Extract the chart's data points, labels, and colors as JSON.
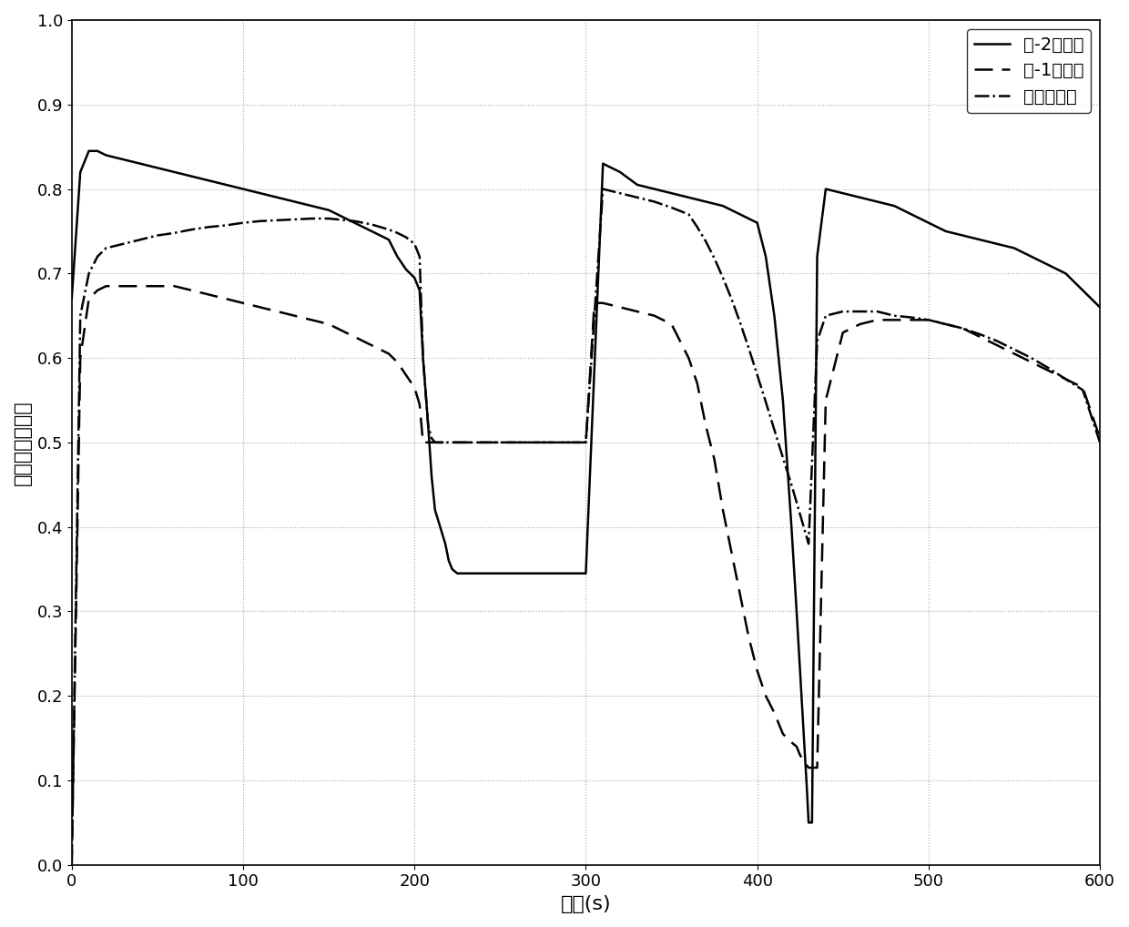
{
  "title": "",
  "xlabel": "时间(s)",
  "ylabel": "平均氨气覆盖率",
  "xlim": [
    0,
    600
  ],
  "ylim": [
    0,
    1
  ],
  "xticks": [
    0,
    100,
    200,
    300,
    400,
    500,
    600
  ],
  "yticks": [
    0,
    0.1,
    0.2,
    0.3,
    0.4,
    0.5,
    0.6,
    0.7,
    0.8,
    0.9,
    1
  ],
  "legend_labels": [
    "罐-2真实值",
    "罐-1真实值",
    "估计平均值"
  ],
  "line1_style": "solid",
  "line2_style": "dashed",
  "line3_style": "dashdot",
  "line_color": "#000000",
  "background_color": "#ffffff",
  "grid_color": "#aaaaaa",
  "grid_style": "dotted",
  "line1_x": [
    0,
    5,
    10,
    15,
    20,
    30,
    40,
    50,
    60,
    70,
    80,
    90,
    100,
    110,
    120,
    130,
    140,
    150,
    155,
    160,
    165,
    170,
    175,
    180,
    185,
    190,
    195,
    200,
    203,
    205,
    208,
    210,
    212,
    215,
    218,
    220,
    222,
    225,
    230,
    240,
    250,
    260,
    270,
    280,
    290,
    300,
    310,
    320,
    330,
    340,
    350,
    360,
    370,
    380,
    390,
    400,
    405,
    410,
    415,
    420,
    423,
    425,
    427,
    429,
    430,
    432,
    435,
    440,
    450,
    460,
    470,
    480,
    490,
    500,
    510,
    520,
    530,
    540,
    550,
    560,
    570,
    580,
    590,
    600
  ],
  "line1_y": [
    0.67,
    0.82,
    0.845,
    0.845,
    0.84,
    0.835,
    0.83,
    0.825,
    0.82,
    0.815,
    0.81,
    0.805,
    0.8,
    0.795,
    0.79,
    0.785,
    0.78,
    0.775,
    0.77,
    0.765,
    0.76,
    0.755,
    0.75,
    0.745,
    0.74,
    0.72,
    0.705,
    0.695,
    0.68,
    0.6,
    0.52,
    0.46,
    0.42,
    0.4,
    0.38,
    0.36,
    0.35,
    0.345,
    0.345,
    0.345,
    0.345,
    0.345,
    0.345,
    0.345,
    0.345,
    0.345,
    0.83,
    0.82,
    0.805,
    0.8,
    0.795,
    0.79,
    0.785,
    0.78,
    0.77,
    0.76,
    0.72,
    0.65,
    0.55,
    0.4,
    0.3,
    0.23,
    0.16,
    0.09,
    0.05,
    0.05,
    0.72,
    0.8,
    0.795,
    0.79,
    0.785,
    0.78,
    0.77,
    0.76,
    0.75,
    0.745,
    0.74,
    0.735,
    0.73,
    0.72,
    0.71,
    0.7,
    0.68,
    0.66
  ],
  "line2_x": [
    0,
    5,
    10,
    15,
    20,
    30,
    40,
    50,
    60,
    70,
    80,
    90,
    100,
    110,
    120,
    130,
    140,
    150,
    155,
    160,
    165,
    170,
    175,
    180,
    185,
    190,
    195,
    200,
    203,
    205,
    208,
    210,
    212,
    215,
    218,
    220,
    222,
    225,
    230,
    240,
    250,
    260,
    270,
    280,
    290,
    300,
    305,
    310,
    320,
    330,
    340,
    350,
    360,
    365,
    370,
    375,
    380,
    385,
    390,
    395,
    400,
    405,
    410,
    415,
    420,
    423,
    425,
    428,
    430,
    435,
    440,
    450,
    460,
    470,
    480,
    490,
    500,
    510,
    520,
    530,
    540,
    550,
    560,
    570,
    580,
    590,
    600
  ],
  "line2_y": [
    0.0,
    0.6,
    0.67,
    0.68,
    0.685,
    0.685,
    0.685,
    0.685,
    0.685,
    0.68,
    0.675,
    0.67,
    0.665,
    0.66,
    0.655,
    0.65,
    0.645,
    0.64,
    0.635,
    0.63,
    0.625,
    0.62,
    0.615,
    0.61,
    0.605,
    0.595,
    0.58,
    0.565,
    0.545,
    0.5,
    0.5,
    0.5,
    0.5,
    0.5,
    0.5,
    0.5,
    0.5,
    0.5,
    0.5,
    0.5,
    0.5,
    0.5,
    0.5,
    0.5,
    0.5,
    0.5,
    0.665,
    0.665,
    0.66,
    0.655,
    0.65,
    0.64,
    0.6,
    0.57,
    0.52,
    0.48,
    0.42,
    0.37,
    0.32,
    0.27,
    0.23,
    0.2,
    0.18,
    0.155,
    0.145,
    0.14,
    0.13,
    0.12,
    0.115,
    0.115,
    0.55,
    0.63,
    0.64,
    0.645,
    0.645,
    0.645,
    0.645,
    0.64,
    0.635,
    0.625,
    0.615,
    0.605,
    0.595,
    0.585,
    0.575,
    0.565,
    0.505
  ],
  "line3_x": [
    0,
    5,
    10,
    15,
    20,
    30,
    40,
    50,
    60,
    70,
    80,
    90,
    100,
    110,
    120,
    130,
    140,
    150,
    155,
    160,
    165,
    170,
    175,
    180,
    185,
    190,
    195,
    200,
    203,
    205,
    208,
    210,
    212,
    215,
    218,
    220,
    222,
    225,
    230,
    240,
    250,
    260,
    270,
    280,
    290,
    300,
    310,
    320,
    330,
    340,
    350,
    360,
    365,
    370,
    375,
    380,
    385,
    390,
    395,
    400,
    405,
    410,
    415,
    420,
    425,
    430,
    435,
    440,
    450,
    460,
    470,
    480,
    490,
    500,
    510,
    520,
    530,
    540,
    550,
    560,
    570,
    580,
    590,
    600
  ],
  "line3_y": [
    0.0,
    0.65,
    0.7,
    0.72,
    0.73,
    0.735,
    0.74,
    0.745,
    0.748,
    0.752,
    0.755,
    0.757,
    0.76,
    0.762,
    0.763,
    0.764,
    0.765,
    0.765,
    0.764,
    0.763,
    0.762,
    0.76,
    0.758,
    0.755,
    0.752,
    0.748,
    0.743,
    0.735,
    0.72,
    0.6,
    0.52,
    0.505,
    0.5,
    0.5,
    0.5,
    0.5,
    0.5,
    0.5,
    0.5,
    0.5,
    0.5,
    0.5,
    0.5,
    0.5,
    0.5,
    0.5,
    0.8,
    0.795,
    0.79,
    0.785,
    0.778,
    0.77,
    0.755,
    0.738,
    0.718,
    0.695,
    0.67,
    0.642,
    0.612,
    0.58,
    0.548,
    0.515,
    0.482,
    0.45,
    0.415,
    0.38,
    0.62,
    0.65,
    0.655,
    0.655,
    0.655,
    0.65,
    0.648,
    0.645,
    0.64,
    0.635,
    0.628,
    0.62,
    0.61,
    0.6,
    0.588,
    0.575,
    0.562,
    0.5
  ]
}
